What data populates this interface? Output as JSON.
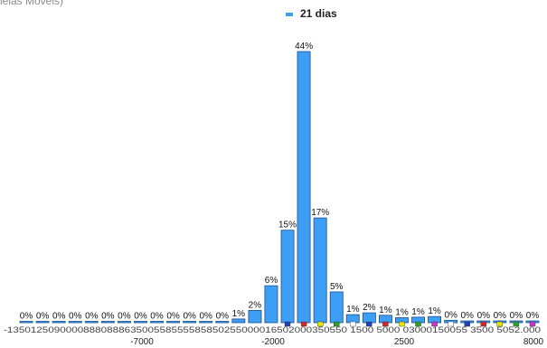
{
  "header": {
    "cut_title": "ielas Móveis)",
    "legend_label": "21 dias"
  },
  "chart_data": {
    "type": "bar",
    "title": "",
    "xlabel": "",
    "ylabel": "",
    "series": [
      {
        "name": "21 dias",
        "color": "#3d9ef5",
        "bins": [
          {
            "x": -13500,
            "value": 0,
            "label": "0%"
          },
          {
            "x": -12500,
            "value": 0,
            "label": "0%"
          },
          {
            "x": -11500,
            "value": 0,
            "label": "0%"
          },
          {
            "x": -10500,
            "value": 0,
            "label": "0%"
          },
          {
            "x": -9500,
            "value": 0,
            "label": "0%"
          },
          {
            "x": -8500,
            "value": 0,
            "label": "0%"
          },
          {
            "x": -7500,
            "value": 0,
            "label": "0%"
          },
          {
            "x": -6500,
            "value": 0,
            "label": "0%"
          },
          {
            "x": -5500,
            "value": 0,
            "label": "0%"
          },
          {
            "x": -4500,
            "value": 0,
            "label": "0%"
          },
          {
            "x": -3500,
            "value": 0,
            "label": "0%"
          },
          {
            "x": -2500,
            "value": 0,
            "label": "0%"
          },
          {
            "x": -2000,
            "value": 0,
            "label": "0%"
          },
          {
            "x": -1500,
            "value": 0.6,
            "label": "1%"
          },
          {
            "x": -1000,
            "value": 2,
            "label": "2%"
          },
          {
            "x": -500,
            "value": 6,
            "label": "6%"
          },
          {
            "x": 0,
            "value": 15,
            "label": "15%"
          },
          {
            "x": 500,
            "value": 44,
            "label": "44%"
          },
          {
            "x": 1000,
            "value": 17,
            "label": "17%"
          },
          {
            "x": 1500,
            "value": 5,
            "label": "5%"
          },
          {
            "x": 2000,
            "value": 1.3,
            "label": "1%"
          },
          {
            "x": 2500,
            "value": 1.6,
            "label": "2%"
          },
          {
            "x": 3000,
            "value": 1.2,
            "label": "1%"
          },
          {
            "x": 3500,
            "value": 0.8,
            "label": "1%"
          },
          {
            "x": 4000,
            "value": 0.9,
            "label": "1%"
          },
          {
            "x": 4500,
            "value": 1.0,
            "label": "1%"
          },
          {
            "x": 5000,
            "value": 0.4,
            "label": "0%"
          },
          {
            "x": 5500,
            "value": 0.3,
            "label": "0%"
          },
          {
            "x": 6000,
            "value": 0.3,
            "label": "0%"
          },
          {
            "x": 6500,
            "value": 0.3,
            "label": "0%"
          },
          {
            "x": 7000,
            "value": 0.3,
            "label": "0%"
          },
          {
            "x": 8000,
            "value": 0.3,
            "label": "0%"
          }
        ]
      }
    ],
    "x_tick_labels": [
      {
        "x": -7000,
        "label": "-7000"
      },
      {
        "x": -2000,
        "label": "-2000"
      },
      {
        "x": 2500,
        "label": "2500"
      },
      {
        "x": 8000,
        "label": "8000"
      }
    ],
    "crowded_tick_row": "-1350125090000888088863500558555585850255000016502000350550 1500 5000 03000150055 3500 5052.000",
    "ylim": [
      0,
      44
    ]
  }
}
